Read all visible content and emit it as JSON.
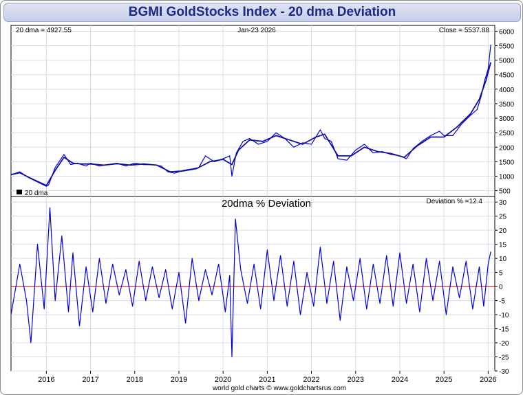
{
  "title": "BGMI GoldStocks Index - 20 dma Deviation",
  "footer": "world gold charts © www.goldchartsrus.com",
  "colors": {
    "series": "#0000dd",
    "zero_line": "#cc0000",
    "grid": "#d4dceb",
    "title_text": "#1a2a8a"
  },
  "chart_data": [
    {
      "type": "line",
      "title": "",
      "header": {
        "left": "20 dma =  4927.55",
        "center": "Jan-23  2026",
        "right": "Close = 5537.88"
      },
      "legend": {
        "label": "20 dma",
        "placement": "bottom-left"
      },
      "ylim": [
        300,
        6200
      ],
      "yticks": [
        500,
        1000,
        1500,
        2000,
        2500,
        3000,
        3500,
        4000,
        4500,
        5000,
        5500,
        6000
      ],
      "xlim": [
        2015.2,
        2026.15
      ],
      "series": [
        {
          "name": "BGMI GoldStocks Index",
          "x": [
            2015.2,
            2015.4,
            2015.6,
            2015.8,
            2016.0,
            2016.05,
            2016.2,
            2016.4,
            2016.55,
            2016.7,
            2016.9,
            2017.0,
            2017.2,
            2017.4,
            2017.6,
            2017.8,
            2018.0,
            2018.2,
            2018.4,
            2018.6,
            2018.75,
            2018.9,
            2019.1,
            2019.3,
            2019.45,
            2019.6,
            2019.8,
            2020.0,
            2020.15,
            2020.2,
            2020.3,
            2020.45,
            2020.6,
            2020.8,
            2021.0,
            2021.2,
            2021.4,
            2021.6,
            2021.8,
            2022.0,
            2022.2,
            2022.3,
            2022.45,
            2022.6,
            2022.8,
            2023.0,
            2023.2,
            2023.4,
            2023.6,
            2023.8,
            2024.0,
            2024.15,
            2024.3,
            2024.5,
            2024.7,
            2024.9,
            2025.0,
            2025.2,
            2025.4,
            2025.6,
            2025.75,
            2025.85,
            2025.92,
            2026.0,
            2026.06
          ],
          "values": [
            1050,
            1150,
            950,
            800,
            650,
            700,
            1300,
            1750,
            1400,
            1450,
            1350,
            1450,
            1350,
            1400,
            1450,
            1350,
            1450,
            1400,
            1400,
            1350,
            1150,
            1100,
            1200,
            1250,
            1300,
            1700,
            1500,
            1600,
            1700,
            1000,
            1800,
            2200,
            2300,
            2100,
            2200,
            2500,
            2300,
            2000,
            2150,
            2100,
            2600,
            2300,
            2200,
            1600,
            1550,
            1900,
            2100,
            1800,
            1850,
            1750,
            1700,
            1600,
            1950,
            2200,
            2400,
            2550,
            2400,
            2400,
            2800,
            3100,
            3300,
            3800,
            4300,
            4700,
            5537.88
          ]
        },
        {
          "name": "20 dma",
          "x": [
            2015.2,
            2015.4,
            2015.6,
            2015.8,
            2016.0,
            2016.2,
            2016.4,
            2016.6,
            2016.8,
            2017.0,
            2017.3,
            2017.6,
            2017.9,
            2018.2,
            2018.5,
            2018.8,
            2019.1,
            2019.4,
            2019.7,
            2020.0,
            2020.2,
            2020.35,
            2020.6,
            2020.9,
            2021.2,
            2021.5,
            2021.8,
            2022.1,
            2022.3,
            2022.6,
            2022.9,
            2023.2,
            2023.5,
            2023.8,
            2024.1,
            2024.4,
            2024.7,
            2025.0,
            2025.3,
            2025.6,
            2025.8,
            2025.95,
            2026.06
          ],
          "values": [
            1050,
            1120,
            960,
            820,
            680,
            1200,
            1650,
            1450,
            1420,
            1420,
            1380,
            1430,
            1380,
            1420,
            1380,
            1150,
            1180,
            1260,
            1500,
            1580,
            1400,
            1900,
            2250,
            2200,
            2400,
            2250,
            2100,
            2350,
            2450,
            1700,
            1700,
            2000,
            1850,
            1780,
            1650,
            2050,
            2350,
            2350,
            2700,
            3150,
            3650,
            4300,
            4927.55
          ]
        }
      ]
    },
    {
      "type": "line",
      "title": "20dma  %  Deviation",
      "header": {
        "right": "Deviation % =12.4"
      },
      "ylim": [
        -30,
        32
      ],
      "yticks": [
        -30,
        -25,
        -20,
        -15,
        -10,
        -5,
        0,
        5,
        10,
        15,
        20,
        25,
        30
      ],
      "xlim": [
        2015.2,
        2026.15
      ],
      "xticks": [
        "2016",
        "2017",
        "2018",
        "2019",
        "2020",
        "2021",
        "2022",
        "2023",
        "2024",
        "2025",
        "2026"
      ],
      "series": [
        {
          "name": "20dma % Deviation",
          "x": [
            2015.2,
            2015.4,
            2015.55,
            2015.65,
            2015.8,
            2015.95,
            2016.08,
            2016.2,
            2016.35,
            2016.5,
            2016.6,
            2016.75,
            2016.9,
            2017.05,
            2017.2,
            2017.35,
            2017.5,
            2017.65,
            2017.8,
            2017.95,
            2018.1,
            2018.25,
            2018.4,
            2018.55,
            2018.7,
            2018.85,
            2019.0,
            2019.15,
            2019.3,
            2019.45,
            2019.6,
            2019.75,
            2019.9,
            2020.05,
            2020.15,
            2020.2,
            2020.28,
            2020.4,
            2020.55,
            2020.7,
            2020.85,
            2021.0,
            2021.15,
            2021.3,
            2021.45,
            2021.6,
            2021.75,
            2021.9,
            2022.05,
            2022.2,
            2022.35,
            2022.5,
            2022.65,
            2022.8,
            2022.95,
            2023.1,
            2023.25,
            2023.4,
            2023.55,
            2023.7,
            2023.85,
            2024.0,
            2024.15,
            2024.3,
            2024.45,
            2024.6,
            2024.75,
            2024.9,
            2025.05,
            2025.2,
            2025.35,
            2025.5,
            2025.65,
            2025.8,
            2025.9,
            2026.0,
            2026.06
          ],
          "values": [
            -10,
            8,
            -5,
            -20,
            15,
            -8,
            28,
            -5,
            18,
            -9,
            12,
            -14,
            7,
            -9,
            10,
            -6,
            8,
            -3,
            6,
            -7,
            9,
            -5,
            7,
            -4,
            6,
            -8,
            5,
            -13,
            10,
            -5,
            6,
            -3,
            8,
            -9,
            4,
            -25,
            24,
            6,
            -6,
            8,
            -8,
            13,
            -5,
            11,
            -7,
            9,
            -10,
            5,
            -7,
            14,
            -6,
            9,
            -12,
            7,
            -5,
            10,
            -8,
            8,
            -6,
            11,
            -7,
            12,
            -6,
            8,
            -9,
            10,
            -5,
            9,
            -10,
            7,
            -4,
            9,
            -8,
            7,
            -7,
            8,
            12.4
          ]
        }
      ]
    }
  ]
}
